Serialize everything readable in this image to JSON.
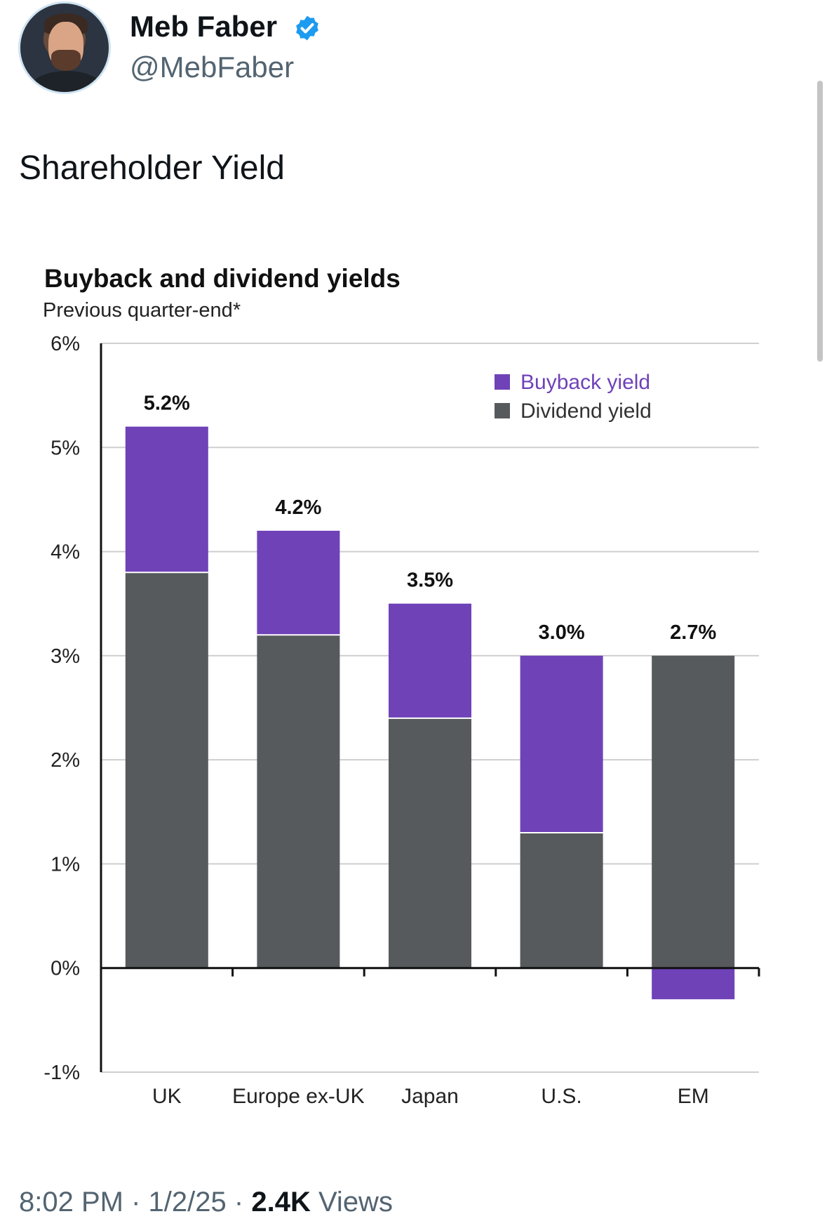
{
  "author": {
    "name": "Meb Faber",
    "handle": "@MebFaber",
    "verified": true
  },
  "tweet": {
    "text": "Shareholder Yield",
    "time": "8:02 PM",
    "date": "1/2/25",
    "separator": "·",
    "views_count": "2.4K",
    "views_label": "Views"
  },
  "colors": {
    "buyback": "#6f42b8",
    "dividend": "#575a5d",
    "grid": "#cfcfcf",
    "verified_badge": "#1d9bf0"
  },
  "chart_data": {
    "type": "bar",
    "stacked": true,
    "title": "Buyback and dividend yields",
    "subtitle": "Previous quarter-end*",
    "categories": [
      "UK",
      "Europe ex-UK",
      "Japan",
      "U.S.",
      "EM"
    ],
    "series": [
      {
        "name": "Dividend yield",
        "values": [
          3.8,
          3.2,
          2.4,
          1.3,
          3.0
        ]
      },
      {
        "name": "Buyback yield",
        "values": [
          1.4,
          1.0,
          1.1,
          1.7,
          -0.3
        ]
      }
    ],
    "totals": [
      "5.2%",
      "4.2%",
      "3.5%",
      "3.0%",
      "2.7%"
    ],
    "ylim": [
      -1,
      6
    ],
    "yticks": [
      6,
      5,
      4,
      3,
      2,
      1,
      0,
      -1
    ],
    "ytick_labels": [
      "6%",
      "5%",
      "4%",
      "3%",
      "2%",
      "1%",
      "0%",
      "-1%"
    ],
    "legend_order": [
      "Buyback yield",
      "Dividend yield"
    ],
    "legend_position": "top-right",
    "grid": true
  }
}
